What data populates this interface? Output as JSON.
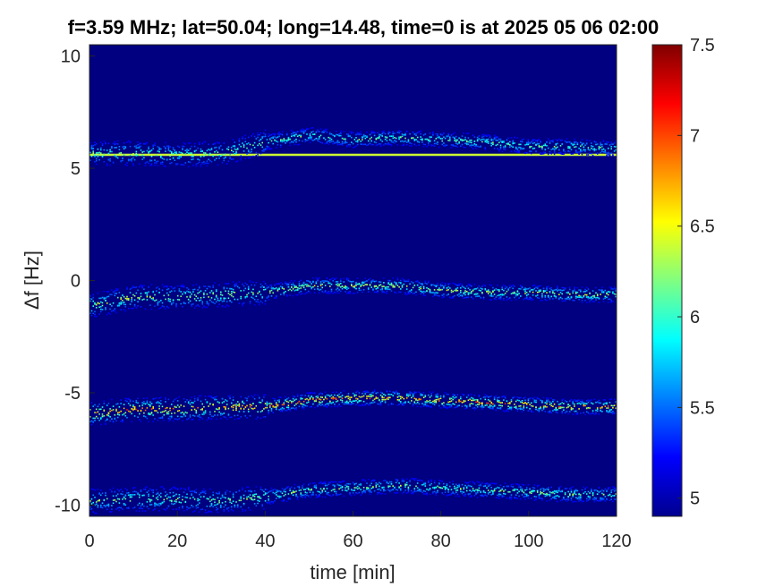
{
  "chart_data": {
    "type": "heatmap",
    "title": "f=3.59 MHz;  lat=50.04; long=14.48, time=0 is at 2025 05 06 02:00",
    "xlabel": "time [min]",
    "ylabel": "Δf [Hz]",
    "xlim": [
      0,
      120
    ],
    "ylim": [
      -10.5,
      10.5
    ],
    "x_ticks": [
      0,
      20,
      40,
      60,
      80,
      100,
      120
    ],
    "x_tick_labels": [
      "0",
      "20",
      "40",
      "60",
      "80",
      "100",
      "120"
    ],
    "y_ticks": [
      -10,
      -5,
      0,
      5,
      10
    ],
    "y_tick_labels": [
      "-10",
      "-5",
      "0",
      "5",
      "10"
    ],
    "colorbar": {
      "colormap": "jet",
      "clim": [
        4.9,
        7.5
      ],
      "ticks": [
        5,
        5.5,
        6,
        6.5,
        7,
        7.5
      ],
      "tick_labels": [
        "5",
        "5.5",
        "6",
        "6.5",
        "7",
        "7.5"
      ]
    },
    "background_color": "#000080",
    "carrier_line": {
      "y": 5.6,
      "x_start": 0,
      "x_end": 120,
      "value": 6.4
    },
    "traces": [
      {
        "points": [
          [
            0,
            5.7
          ],
          [
            10,
            5.7
          ],
          [
            20,
            5.6
          ],
          [
            30,
            5.7
          ],
          [
            40,
            6.2
          ],
          [
            50,
            6.5
          ],
          [
            60,
            6.3
          ],
          [
            70,
            6.4
          ],
          [
            80,
            6.3
          ],
          [
            90,
            6.2
          ],
          [
            100,
            6.0
          ],
          [
            110,
            6.0
          ],
          [
            120,
            5.9
          ]
        ],
        "peak_value": 6.4
      },
      {
        "points": [
          [
            0,
            -1.1
          ],
          [
            10,
            -0.7
          ],
          [
            20,
            -0.7
          ],
          [
            30,
            -0.6
          ],
          [
            40,
            -0.5
          ],
          [
            50,
            -0.2
          ],
          [
            60,
            -0.2
          ],
          [
            70,
            -0.2
          ],
          [
            80,
            -0.4
          ],
          [
            90,
            -0.5
          ],
          [
            100,
            -0.5
          ],
          [
            110,
            -0.6
          ],
          [
            120,
            -0.6
          ]
        ],
        "peak_value": 6.7
      },
      {
        "points": [
          [
            0,
            -5.9
          ],
          [
            10,
            -5.7
          ],
          [
            20,
            -5.7
          ],
          [
            30,
            -5.6
          ],
          [
            40,
            -5.6
          ],
          [
            50,
            -5.3
          ],
          [
            60,
            -5.2
          ],
          [
            70,
            -5.2
          ],
          [
            80,
            -5.3
          ],
          [
            90,
            -5.4
          ],
          [
            100,
            -5.5
          ],
          [
            110,
            -5.6
          ],
          [
            120,
            -5.6
          ]
        ],
        "peak_value": 7.3
      },
      {
        "points": [
          [
            0,
            -9.8
          ],
          [
            10,
            -9.7
          ],
          [
            20,
            -9.7
          ],
          [
            30,
            -9.8
          ],
          [
            40,
            -9.6
          ],
          [
            50,
            -9.3
          ],
          [
            60,
            -9.2
          ],
          [
            70,
            -9.1
          ],
          [
            80,
            -9.2
          ],
          [
            90,
            -9.3
          ],
          [
            100,
            -9.4
          ],
          [
            110,
            -9.5
          ],
          [
            120,
            -9.5
          ]
        ],
        "peak_value": 6.5
      }
    ],
    "grid": false
  }
}
